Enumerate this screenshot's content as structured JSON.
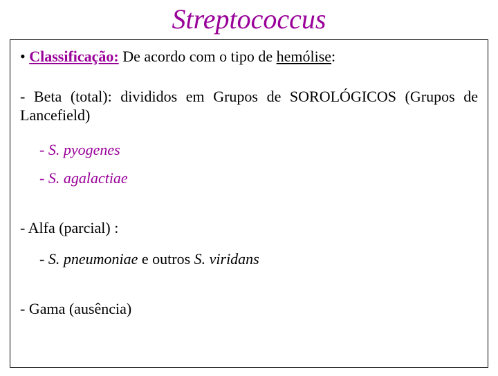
{
  "colors": {
    "title": "#990099",
    "classif_label": "#990099",
    "pyogenes": "#990099",
    "agalactiae": "#990099",
    "text": "#000000",
    "background": "#ffffff",
    "border": "#000000"
  },
  "typography": {
    "title_fontsize_pt": 30,
    "title_style": "italic",
    "body_fontsize_pt": 17,
    "font_family": "Times New Roman"
  },
  "title": "Streptococcus",
  "classification": {
    "bullet": "• ",
    "label": "Classificação:",
    "rest_pre": "   De acordo com o tipo de ",
    "hemolise": "hemólise",
    "rest_post": ":"
  },
  "beta": {
    "text": "- Beta (total): divididos em Grupos de SOROLÓGICOS (Grupos de Lancefield)"
  },
  "beta_sub": [
    {
      "dash": "- ",
      "name": "S. pyogenes"
    },
    {
      "dash": "- ",
      "name": "S. agalactiae"
    }
  ],
  "alfa": {
    "text": "-  Alfa (parcial) :"
  },
  "alfa_sub": {
    "dash": "- ",
    "sp1": "S. pneumoniae",
    "mid": "  e   outros ",
    "sp2": "S. viridans"
  },
  "gama": {
    "text": "-  Gama (ausência)"
  }
}
